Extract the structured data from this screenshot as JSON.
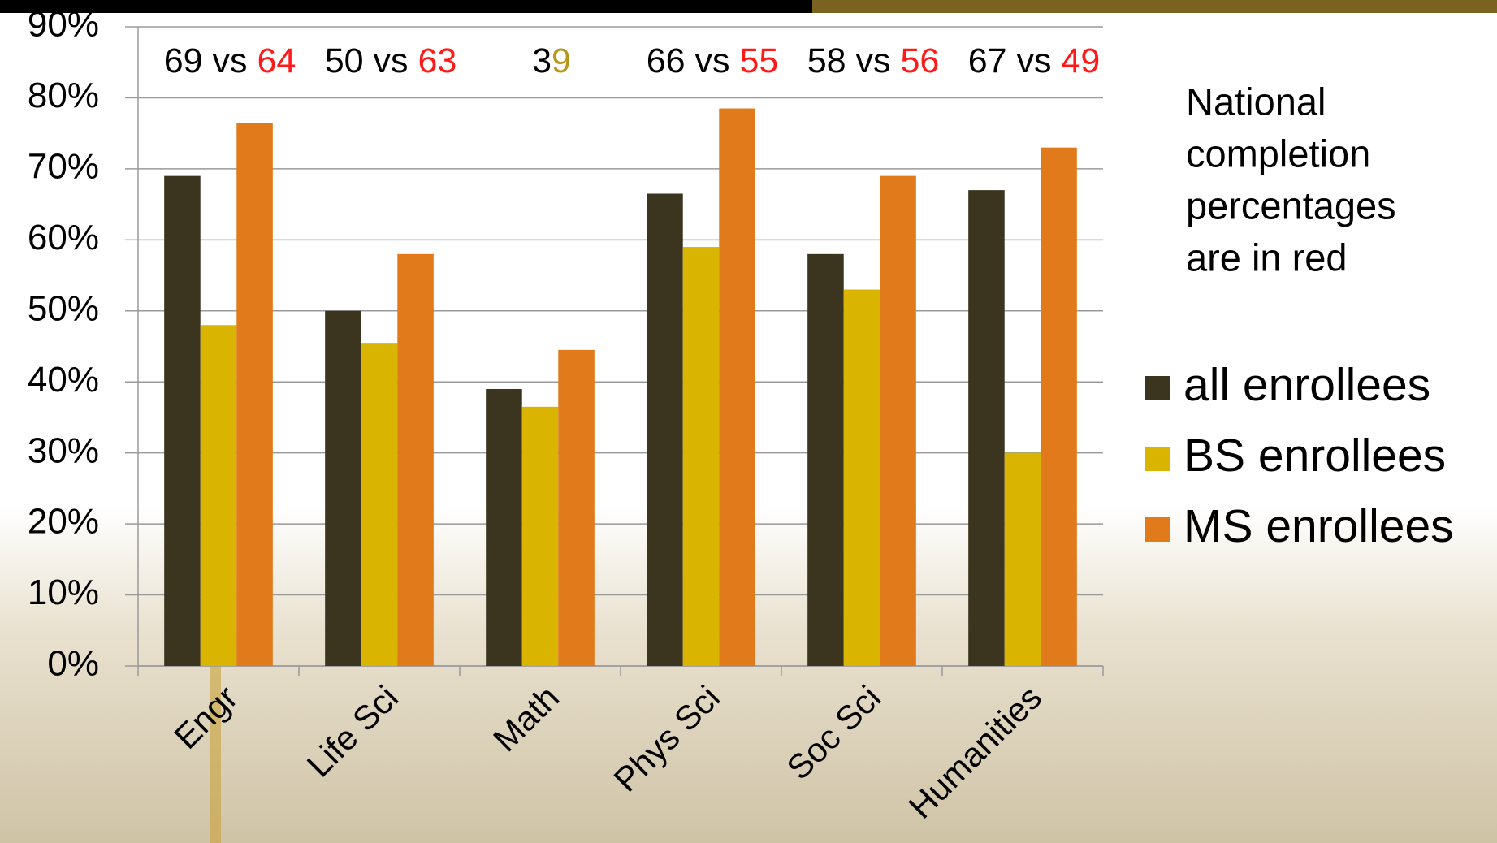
{
  "chart_data": {
    "type": "bar",
    "categories": [
      "Engr",
      "Life Sci",
      "Math",
      "Phys Sci",
      "Soc Sci",
      "Humanities"
    ],
    "series": [
      {
        "name": "all enrollees",
        "color": "#3b3520",
        "values": [
          69,
          50,
          39,
          66.5,
          58,
          67
        ]
      },
      {
        "name": "BS enrollees",
        "color": "#d9b400",
        "values": [
          48,
          45.5,
          36.5,
          59,
          53,
          30
        ]
      },
      {
        "name": "MS enrollees",
        "color": "#e07a1a",
        "values": [
          76.5,
          58,
          44.5,
          78.5,
          69,
          73
        ]
      }
    ],
    "ylim": [
      0,
      90
    ],
    "yticks": [
      {
        "value": 0,
        "label": "0%"
      },
      {
        "value": 10,
        "label": "10%"
      },
      {
        "value": 20,
        "label": "20%"
      },
      {
        "value": 30,
        "label": "30%"
      },
      {
        "value": 40,
        "label": "40%"
      },
      {
        "value": 50,
        "label": "50%"
      },
      {
        "value": 60,
        "label": "60%"
      },
      {
        "value": 70,
        "label": "70%"
      },
      {
        "value": 80,
        "label": "80%"
      },
      {
        "value": 90,
        "label": "90%"
      }
    ],
    "grid": true,
    "annotations": [
      {
        "text": "69 vs",
        "national": "64",
        "national_color": "#ff1a1a"
      },
      {
        "text": "50 vs",
        "national": "63",
        "national_color": "#ff1a1a"
      },
      {
        "text": "3",
        "national": "9",
        "national_color": "#b8961c"
      },
      {
        "text": "66 vs",
        "national": "55",
        "national_color": "#ff1a1a"
      },
      {
        "text": "58 vs",
        "national": "56",
        "national_color": "#ff1a1a"
      },
      {
        "text": "67 vs",
        "national": "49",
        "national_color": "#ff1a1a"
      }
    ],
    "note": [
      "National",
      "completion",
      "percentages",
      "are in red"
    ],
    "note_color": "#ff1a1a"
  }
}
